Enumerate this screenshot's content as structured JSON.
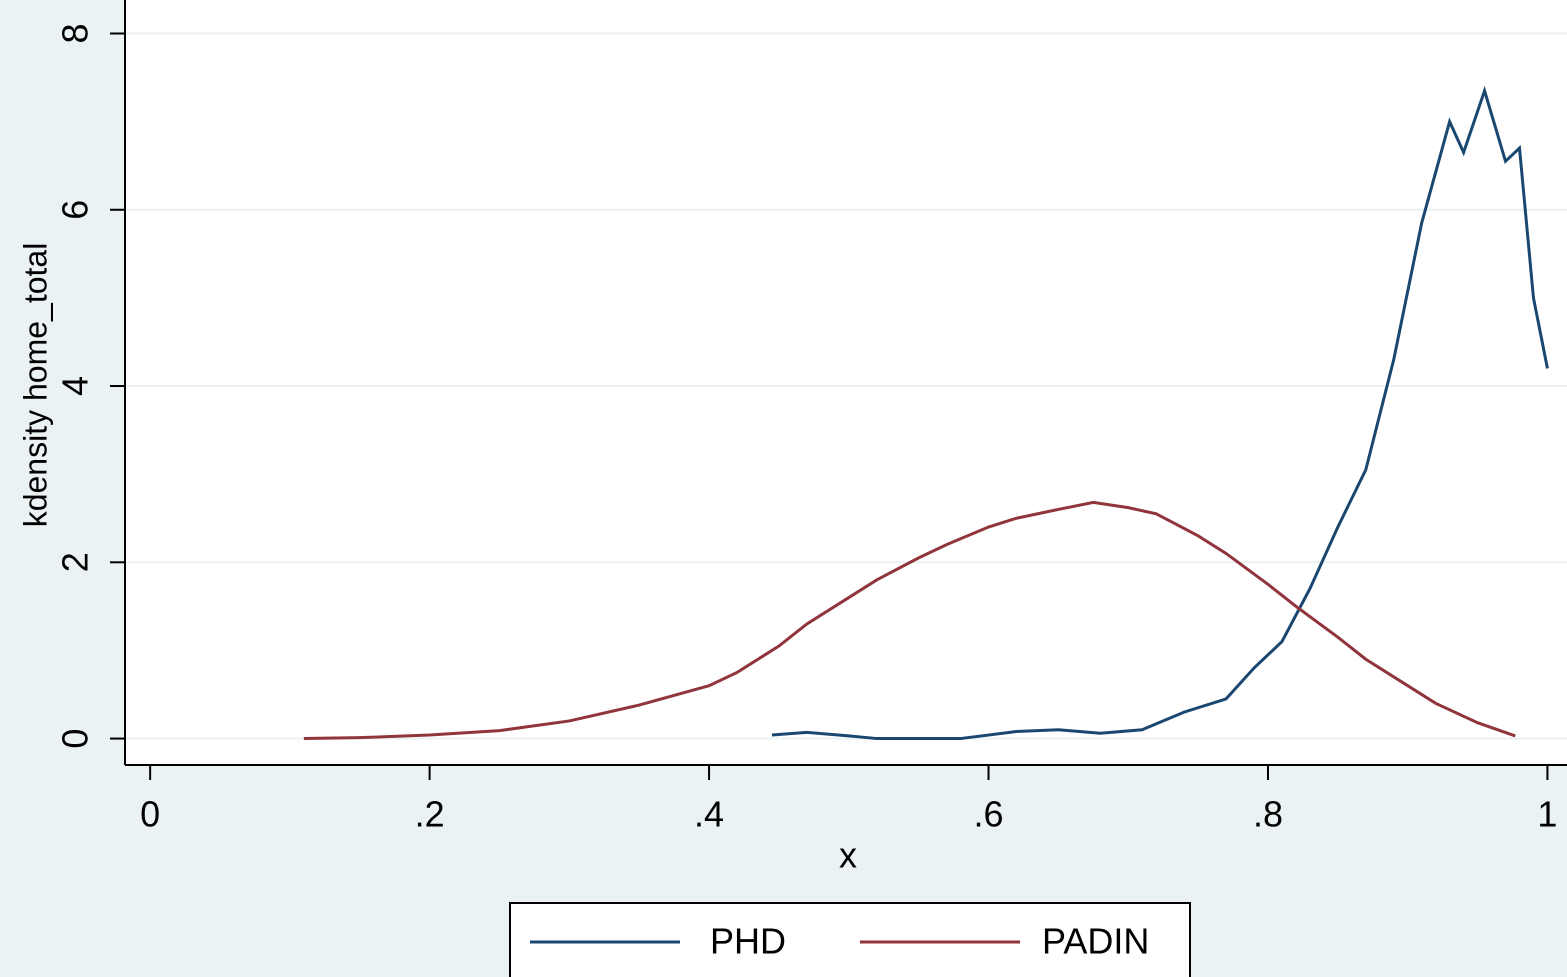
{
  "chart_data": {
    "type": "line",
    "xlabel": "x",
    "ylabel": "kdensity home_total",
    "xlim": [
      -0.018,
      1.014
    ],
    "ylim": [
      -0.3,
      8.38
    ],
    "xticks": [
      0,
      {
        "value": 0.2,
        "label": ".2"
      },
      {
        "value": 0.4,
        "label": ".4"
      },
      {
        "value": 0.6,
        "label": ".6"
      },
      {
        "value": 0.8,
        "label": ".8"
      },
      1
    ],
    "yticks": [
      0,
      2,
      4,
      6,
      8
    ],
    "grid": true,
    "legend": "bottom",
    "series": [
      {
        "name": "PHD",
        "color": "#1a476f",
        "x": [
          0.445,
          0.47,
          0.5,
          0.52,
          0.58,
          0.62,
          0.65,
          0.68,
          0.71,
          0.74,
          0.77,
          0.79,
          0.81,
          0.83,
          0.85,
          0.87,
          0.89,
          0.91,
          0.93,
          0.94,
          0.955,
          0.97,
          0.98,
          0.99,
          1.0
        ],
        "values": [
          0.04,
          0.07,
          0.03,
          0,
          0,
          0.08,
          0.1,
          0.06,
          0.1,
          0.3,
          0.45,
          0.8,
          1.1,
          1.7,
          2.4,
          3.05,
          4.3,
          5.85,
          7.0,
          6.65,
          7.35,
          6.55,
          6.7,
          5.0,
          4.2
        ]
      },
      {
        "name": "PADIN",
        "color": "#90353b",
        "x": [
          0.11,
          0.15,
          0.2,
          0.25,
          0.3,
          0.35,
          0.4,
          0.42,
          0.45,
          0.47,
          0.5,
          0.52,
          0.55,
          0.57,
          0.6,
          0.62,
          0.65,
          0.675,
          0.7,
          0.72,
          0.75,
          0.77,
          0.8,
          0.82,
          0.85,
          0.87,
          0.9,
          0.92,
          0.95,
          0.977
        ],
        "values": [
          0,
          0.01,
          0.04,
          0.09,
          0.2,
          0.38,
          0.6,
          0.75,
          1.05,
          1.3,
          1.6,
          1.8,
          2.05,
          2.2,
          2.4,
          2.5,
          2.6,
          2.68,
          2.62,
          2.55,
          2.3,
          2.1,
          1.75,
          1.5,
          1.15,
          0.9,
          0.6,
          0.4,
          0.18,
          0.03
        ]
      }
    ]
  }
}
